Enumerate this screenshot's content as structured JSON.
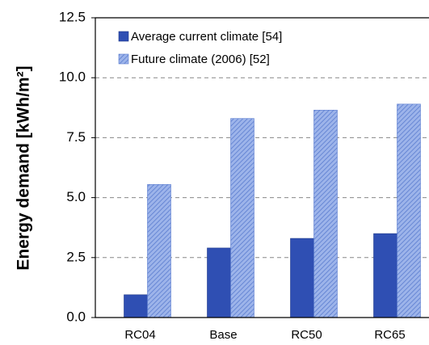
{
  "chart_data": {
    "type": "bar",
    "y_label": "Energy demand [kWh/m²]",
    "categories": [
      "RC04",
      "Base",
      "RC50",
      "RC65"
    ],
    "series": [
      {
        "name": "Average current climate [54]",
        "color": "#2f4fb3",
        "values": [
          0.95,
          2.9,
          3.3,
          3.5
        ]
      },
      {
        "name": "Future climate (2006) [52]",
        "color": "#7a98df",
        "hatch": true,
        "values": [
          5.55,
          8.3,
          8.65,
          8.9
        ]
      }
    ],
    "ylim": [
      0,
      12.5
    ],
    "yticks": [
      {
        "value": 0,
        "label": "0.0"
      },
      2.5,
      {
        "value": 5,
        "label": "5.0"
      },
      7.5,
      {
        "value": 10,
        "label": "10.0"
      },
      12.5
    ],
    "grid": true
  }
}
